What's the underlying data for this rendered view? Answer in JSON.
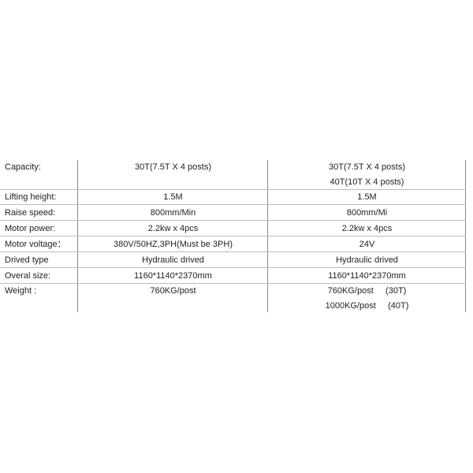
{
  "table": {
    "rows": [
      {
        "label": "Capacity:",
        "col1": [
          "30T(7.5T X 4 posts)"
        ],
        "col2": [
          "30T(7.5T X 4 posts)",
          "40T(10T X 4 posts)"
        ]
      },
      {
        "label": "Lifting height:",
        "col1": [
          "1.5M"
        ],
        "col2": [
          "1.5M"
        ]
      },
      {
        "label": "Raise speed:",
        "col1": [
          "800mm/Min"
        ],
        "col2": [
          "800mm/Mi"
        ]
      },
      {
        "label": "Motor power:",
        "col1": [
          "2.2kw x 4pcs"
        ],
        "col2": [
          "2.2kw x 4pcs"
        ]
      },
      {
        "label": "Motor voltage：",
        "col1": [
          "380V/50HZ,3PH(Must be 3PH)"
        ],
        "col2": [
          "24V"
        ]
      },
      {
        "label": "Drived type",
        "col1": [
          "Hydraulic drived"
        ],
        "col2": [
          "Hydraulic drived"
        ]
      },
      {
        "label": "Overal size:",
        "col1": [
          "1160*1140*2370mm"
        ],
        "col2": [
          "1160*1140*2370mm"
        ]
      },
      {
        "label": "Weight :",
        "col1": [
          "760KG/post"
        ],
        "col2": [
          "760KG/post     (30T)",
          "1000KG/post     (40T)"
        ]
      }
    ]
  }
}
